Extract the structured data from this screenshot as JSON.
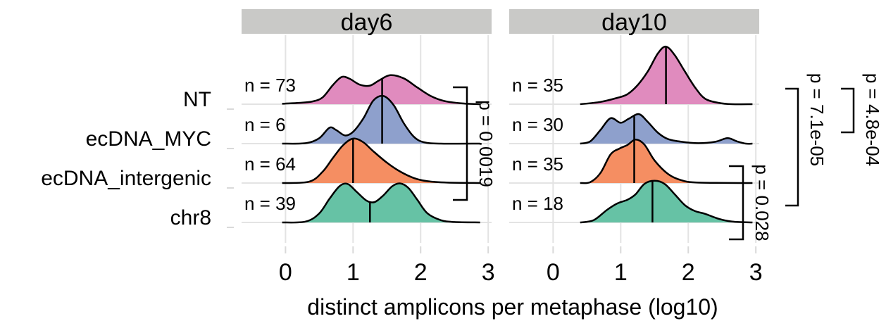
{
  "chart_data": {
    "type": "ridgeline",
    "xlabel": "distinct amplicons per metaphase (log10)",
    "ylabel": "",
    "xlim": [
      -0.65,
      3.05
    ],
    "x_ticks": [
      "0",
      "1",
      "2",
      "3"
    ],
    "x_tick_values": [
      0,
      1,
      2,
      3
    ],
    "groups": [
      "NT",
      "ecDNA_MYC",
      "ecDNA_intergenic",
      "chr8"
    ],
    "colors": {
      "NT": "#E08BBE",
      "ecDNA_MYC": "#8EA0CC",
      "ecDNA_intergenic": "#F58E62",
      "chr8": "#66C2A5",
      "strip": "#C9C9C7",
      "grid": "#E3E3E3",
      "text": "#000000"
    },
    "grid": true,
    "panels": [
      {
        "strip": "day6",
        "series": [
          {
            "group": "NT",
            "n_label": "n = 73",
            "median": 1.43,
            "density": [
              [
                -0.05,
                0.01
              ],
              [
                0.2,
                0.03
              ],
              [
                0.4,
                0.06
              ],
              [
                0.55,
                0.15
              ],
              [
                0.7,
                0.42
              ],
              [
                0.83,
                0.6
              ],
              [
                0.95,
                0.56
              ],
              [
                1.1,
                0.43
              ],
              [
                1.25,
                0.41
              ],
              [
                1.38,
                0.52
              ],
              [
                1.55,
                0.64
              ],
              [
                1.75,
                0.57
              ],
              [
                1.95,
                0.37
              ],
              [
                2.15,
                0.18
              ],
              [
                2.35,
                0.07
              ],
              [
                2.6,
                0.02
              ],
              [
                2.88,
                0.0
              ]
            ]
          },
          {
            "group": "ecDNA_MYC",
            "n_label": "n = 6",
            "median": 1.43,
            "density": [
              [
                -0.05,
                0.0
              ],
              [
                0.3,
                0.01
              ],
              [
                0.5,
                0.12
              ],
              [
                0.65,
                0.35
              ],
              [
                0.75,
                0.3
              ],
              [
                0.88,
                0.18
              ],
              [
                1.0,
                0.26
              ],
              [
                1.15,
                0.55
              ],
              [
                1.3,
                0.95
              ],
              [
                1.45,
                1.05
              ],
              [
                1.6,
                0.85
              ],
              [
                1.75,
                0.45
              ],
              [
                1.9,
                0.15
              ],
              [
                2.05,
                0.03
              ],
              [
                2.3,
                0.0
              ],
              [
                2.88,
                0.0
              ]
            ]
          },
          {
            "group": "ecDNA_intergenic",
            "n_label": "n = 64",
            "median": 1.0,
            "density": [
              [
                -0.05,
                0.0
              ],
              [
                0.35,
                0.03
              ],
              [
                0.55,
                0.25
              ],
              [
                0.7,
                0.55
              ],
              [
                0.85,
                0.83
              ],
              [
                1.0,
                0.98
              ],
              [
                1.15,
                0.9
              ],
              [
                1.3,
                0.7
              ],
              [
                1.5,
                0.45
              ],
              [
                1.7,
                0.25
              ],
              [
                1.9,
                0.11
              ],
              [
                2.1,
                0.04
              ],
              [
                2.4,
                0.01
              ],
              [
                2.88,
                0.0
              ]
            ]
          },
          {
            "group": "chr8",
            "n_label": "n = 39",
            "median": 1.25,
            "density": [
              [
                -0.05,
                0.0
              ],
              [
                0.3,
                0.02
              ],
              [
                0.5,
                0.2
              ],
              [
                0.65,
                0.52
              ],
              [
                0.8,
                0.8
              ],
              [
                0.92,
                0.85
              ],
              [
                1.05,
                0.68
              ],
              [
                1.2,
                0.48
              ],
              [
                1.32,
                0.45
              ],
              [
                1.45,
                0.6
              ],
              [
                1.58,
                0.8
              ],
              [
                1.7,
                0.86
              ],
              [
                1.82,
                0.76
              ],
              [
                1.95,
                0.5
              ],
              [
                2.1,
                0.2
              ],
              [
                2.3,
                0.05
              ],
              [
                2.5,
                0.01
              ],
              [
                2.88,
                0.0
              ]
            ]
          }
        ],
        "bracket": {
          "from": "NT",
          "to": "ecDNA_intergenic",
          "label": "p = 0.0019"
        }
      },
      {
        "strip": "day10",
        "series": [
          {
            "group": "NT",
            "n_label": "n = 35",
            "median": 1.67,
            "density": [
              [
                0.4,
                0.0
              ],
              [
                0.7,
                0.05
              ],
              [
                0.95,
                0.14
              ],
              [
                1.1,
                0.22
              ],
              [
                1.25,
                0.42
              ],
              [
                1.4,
                0.72
              ],
              [
                1.55,
                1.12
              ],
              [
                1.67,
                1.27
              ],
              [
                1.8,
                1.08
              ],
              [
                1.95,
                0.72
              ],
              [
                2.1,
                0.37
              ],
              [
                2.25,
                0.12
              ],
              [
                2.45,
                0.03
              ],
              [
                2.65,
                0.0
              ],
              [
                2.95,
                0.0
              ]
            ]
          },
          {
            "group": "ecDNA_MYC",
            "n_label": "n = 30",
            "median": 1.2,
            "density": [
              [
                0.4,
                0.0
              ],
              [
                0.55,
                0.05
              ],
              [
                0.7,
                0.3
              ],
              [
                0.85,
                0.56
              ],
              [
                1.0,
                0.46
              ],
              [
                1.12,
                0.55
              ],
              [
                1.27,
                0.65
              ],
              [
                1.4,
                0.48
              ],
              [
                1.55,
                0.24
              ],
              [
                1.7,
                0.1
              ],
              [
                1.9,
                0.04
              ],
              [
                2.15,
                0.01
              ],
              [
                2.4,
                0.04
              ],
              [
                2.58,
                0.12
              ],
              [
                2.72,
                0.05
              ],
              [
                2.85,
                0.0
              ],
              [
                2.95,
                0.0
              ]
            ]
          },
          {
            "group": "ecDNA_intergenic",
            "n_label": "n = 35",
            "median": 1.2,
            "density": [
              [
                0.4,
                0.0
              ],
              [
                0.55,
                0.02
              ],
              [
                0.7,
                0.22
              ],
              [
                0.85,
                0.63
              ],
              [
                0.98,
                0.76
              ],
              [
                1.1,
                0.84
              ],
              [
                1.22,
                0.96
              ],
              [
                1.35,
                0.85
              ],
              [
                1.5,
                0.5
              ],
              [
                1.7,
                0.2
              ],
              [
                1.9,
                0.06
              ],
              [
                2.15,
                0.01
              ],
              [
                2.95,
                0.0
              ]
            ]
          },
          {
            "group": "chr8",
            "n_label": "n = 18",
            "median": 1.47,
            "density": [
              [
                0.4,
                0.0
              ],
              [
                0.6,
                0.05
              ],
              [
                0.8,
                0.28
              ],
              [
                0.95,
                0.42
              ],
              [
                1.1,
                0.5
              ],
              [
                1.22,
                0.62
              ],
              [
                1.35,
                0.85
              ],
              [
                1.5,
                0.92
              ],
              [
                1.65,
                0.85
              ],
              [
                1.8,
                0.62
              ],
              [
                1.95,
                0.38
              ],
              [
                2.1,
                0.25
              ],
              [
                2.25,
                0.19
              ],
              [
                2.45,
                0.08
              ],
              [
                2.65,
                0.02
              ],
              [
                2.95,
                0.0
              ]
            ]
          }
        ],
        "bracket": {
          "from": "ecDNA_intergenic",
          "to": "chr8",
          "label": "p = 0.028"
        }
      }
    ],
    "outer_brackets": [
      {
        "from": "NT",
        "to": "ecDNA_intergenic",
        "label": "p = 7.1e-05"
      },
      {
        "from": "NT",
        "to": "ecDNA_MYC",
        "label": "p = 4.8e-04"
      }
    ]
  }
}
